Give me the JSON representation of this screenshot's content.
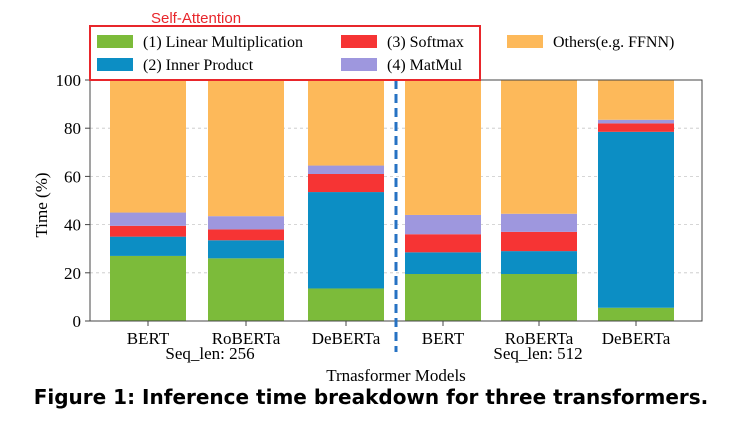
{
  "caption": "Figure 1: Inference time breakdown for three transformers.",
  "chart_data": {
    "type": "bar",
    "stacked": true,
    "ylabel": "Time (%)",
    "xlabel": "Trnasformer Models",
    "ylim": [
      0,
      100
    ],
    "yticks": [
      0,
      20,
      40,
      60,
      80,
      100
    ],
    "grid": true,
    "categories": [
      "BERT",
      "RoBERTa",
      "DeBERTa",
      "BERT",
      "RoBERTa",
      "DeBERTa"
    ],
    "groups": [
      {
        "label": "Seq_len: 256",
        "categories": [
          0,
          1,
          2
        ]
      },
      {
        "label": "Seq_len: 512",
        "categories": [
          3,
          4,
          5
        ]
      }
    ],
    "legend_group_title": "Self-Attention",
    "legend_position": "top",
    "series": [
      {
        "name": "(1) Linear Multiplication",
        "color": "#7cbb3a",
        "values": [
          27,
          26,
          13.5,
          19.5,
          19.5,
          5.5
        ]
      },
      {
        "name": "(2) Inner Product",
        "color": "#0c8ec4",
        "values": [
          8,
          7.5,
          40,
          9,
          9.5,
          73
        ]
      },
      {
        "name": "(3) Softmax",
        "color": "#f63434",
        "values": [
          4.5,
          4.5,
          7.5,
          7.5,
          8,
          3.5
        ]
      },
      {
        "name": "(4) MatMul",
        "color": "#9e97de",
        "values": [
          5.5,
          5.5,
          3.5,
          8,
          7.5,
          1.5
        ]
      },
      {
        "name": "Others(e.g. FFNN)",
        "color": "#fdb95a",
        "values": [
          55,
          56.5,
          35.5,
          56,
          55.5,
          16.5
        ]
      }
    ]
  }
}
